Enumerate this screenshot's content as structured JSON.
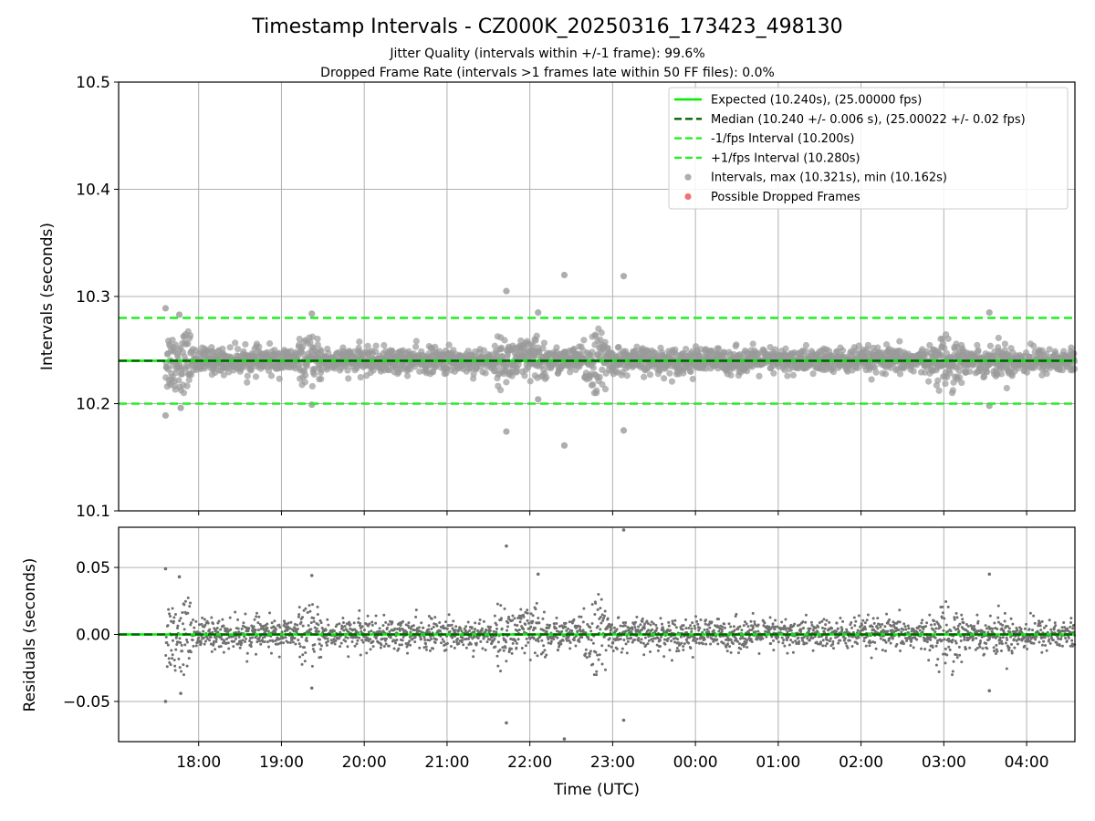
{
  "figure": {
    "title": "Timestamp Intervals - CZ000K_20250316_173423_498130",
    "subtitle_1": "Jitter Quality (intervals within +/-1 frame): 99.6%",
    "subtitle_2": "Dropped Frame Rate (intervals >1 frames late within 50 FF files): 0.0%"
  },
  "colors": {
    "expected": "#00ee00",
    "median": "#006400",
    "interval_band": "#22ee22",
    "points_top": "#9a9a9a",
    "points_bottom": "#707070",
    "dropped": "#f05050",
    "grid": "#b0b0b0"
  },
  "chart_data": [
    {
      "type": "scatter",
      "panel": "top",
      "ylabel": "Intervals (seconds)",
      "ylim": [
        10.1,
        10.5
      ],
      "yticks": [
        "10.1",
        "10.2",
        "10.3",
        "10.4",
        "10.5"
      ],
      "grid": true,
      "legend_position": "top-right",
      "legend": [
        {
          "label": "Expected (10.240s), (25.00000 fps)",
          "style": "solid-line",
          "color": "#00ee00"
        },
        {
          "label": "Median (10.240 +/- 0.006 s), (25.00022 +/- 0.02 fps)",
          "style": "dashed-line",
          "color": "#006400"
        },
        {
          "label": "-1/fps Interval (10.200s)",
          "style": "dashed-line",
          "color": "#22ee22"
        },
        {
          "label": "+1/fps Interval (10.280s)",
          "style": "dashed-line",
          "color": "#22ee22"
        },
        {
          "label": "Intervals, max (10.321s), min (10.162s)",
          "style": "marker",
          "color": "#9a9a9a"
        },
        {
          "label": "Possible Dropped Frames",
          "style": "marker",
          "color": "#f05050"
        }
      ],
      "lines": [
        {
          "name": "Expected",
          "y": 10.24
        },
        {
          "name": "Median",
          "y": 10.24
        },
        {
          "name": "-1/fps Interval",
          "y": 10.2
        },
        {
          "name": "+1/fps Interval",
          "y": 10.28
        }
      ],
      "median": 10.24,
      "stats": {
        "max": 10.321,
        "min": 10.162,
        "count_approx": 4000
      },
      "outliers": [
        {
          "x": "17:36",
          "y": 10.289
        },
        {
          "x": "17:36",
          "y": 10.189
        },
        {
          "x": "17:46",
          "y": 10.283
        },
        {
          "x": "17:47",
          "y": 10.196
        },
        {
          "x": "19:22",
          "y": 10.284
        },
        {
          "x": "19:22",
          "y": 10.199
        },
        {
          "x": "21:43",
          "y": 10.305
        },
        {
          "x": "21:43",
          "y": 10.174
        },
        {
          "x": "22:06",
          "y": 10.285
        },
        {
          "x": "22:06",
          "y": 10.204
        },
        {
          "x": "22:25",
          "y": 10.32
        },
        {
          "x": "22:25",
          "y": 10.161
        },
        {
          "x": "23:08",
          "y": 10.319
        },
        {
          "x": "23:08",
          "y": 10.175
        },
        {
          "x": "03:33",
          "y": 10.285
        },
        {
          "x": "03:33",
          "y": 10.198
        }
      ]
    },
    {
      "type": "scatter",
      "panel": "bottom",
      "xlabel": "Time (UTC)",
      "ylabel": "Residuals (seconds)",
      "ylim": [
        -0.08,
        0.08
      ],
      "yticks": [
        "−0.05",
        "0.00",
        "0.05"
      ],
      "xticks": [
        "18:00",
        "19:00",
        "20:00",
        "21:00",
        "22:00",
        "23:00",
        "00:00",
        "01:00",
        "02:00",
        "03:00",
        "04:00"
      ],
      "xlim": [
        "17:02",
        "04:35"
      ],
      "data_start": "17:36",
      "grid": true,
      "lines": [
        {
          "name": "Expected",
          "y": 0.0
        },
        {
          "name": "Median",
          "y": 0.0
        }
      ],
      "outliers": [
        {
          "x": "17:36",
          "y": 0.049
        },
        {
          "x": "17:36",
          "y": -0.05
        },
        {
          "x": "17:46",
          "y": 0.043
        },
        {
          "x": "17:47",
          "y": -0.044
        },
        {
          "x": "19:22",
          "y": 0.044
        },
        {
          "x": "19:22",
          "y": -0.04
        },
        {
          "x": "21:43",
          "y": 0.066
        },
        {
          "x": "21:43",
          "y": -0.066
        },
        {
          "x": "22:06",
          "y": 0.045
        },
        {
          "x": "22:25",
          "y": -0.078
        },
        {
          "x": "23:08",
          "y": 0.078
        },
        {
          "x": "23:08",
          "y": -0.064
        },
        {
          "x": "03:33",
          "y": 0.045
        },
        {
          "x": "03:33",
          "y": -0.042
        }
      ]
    }
  ]
}
